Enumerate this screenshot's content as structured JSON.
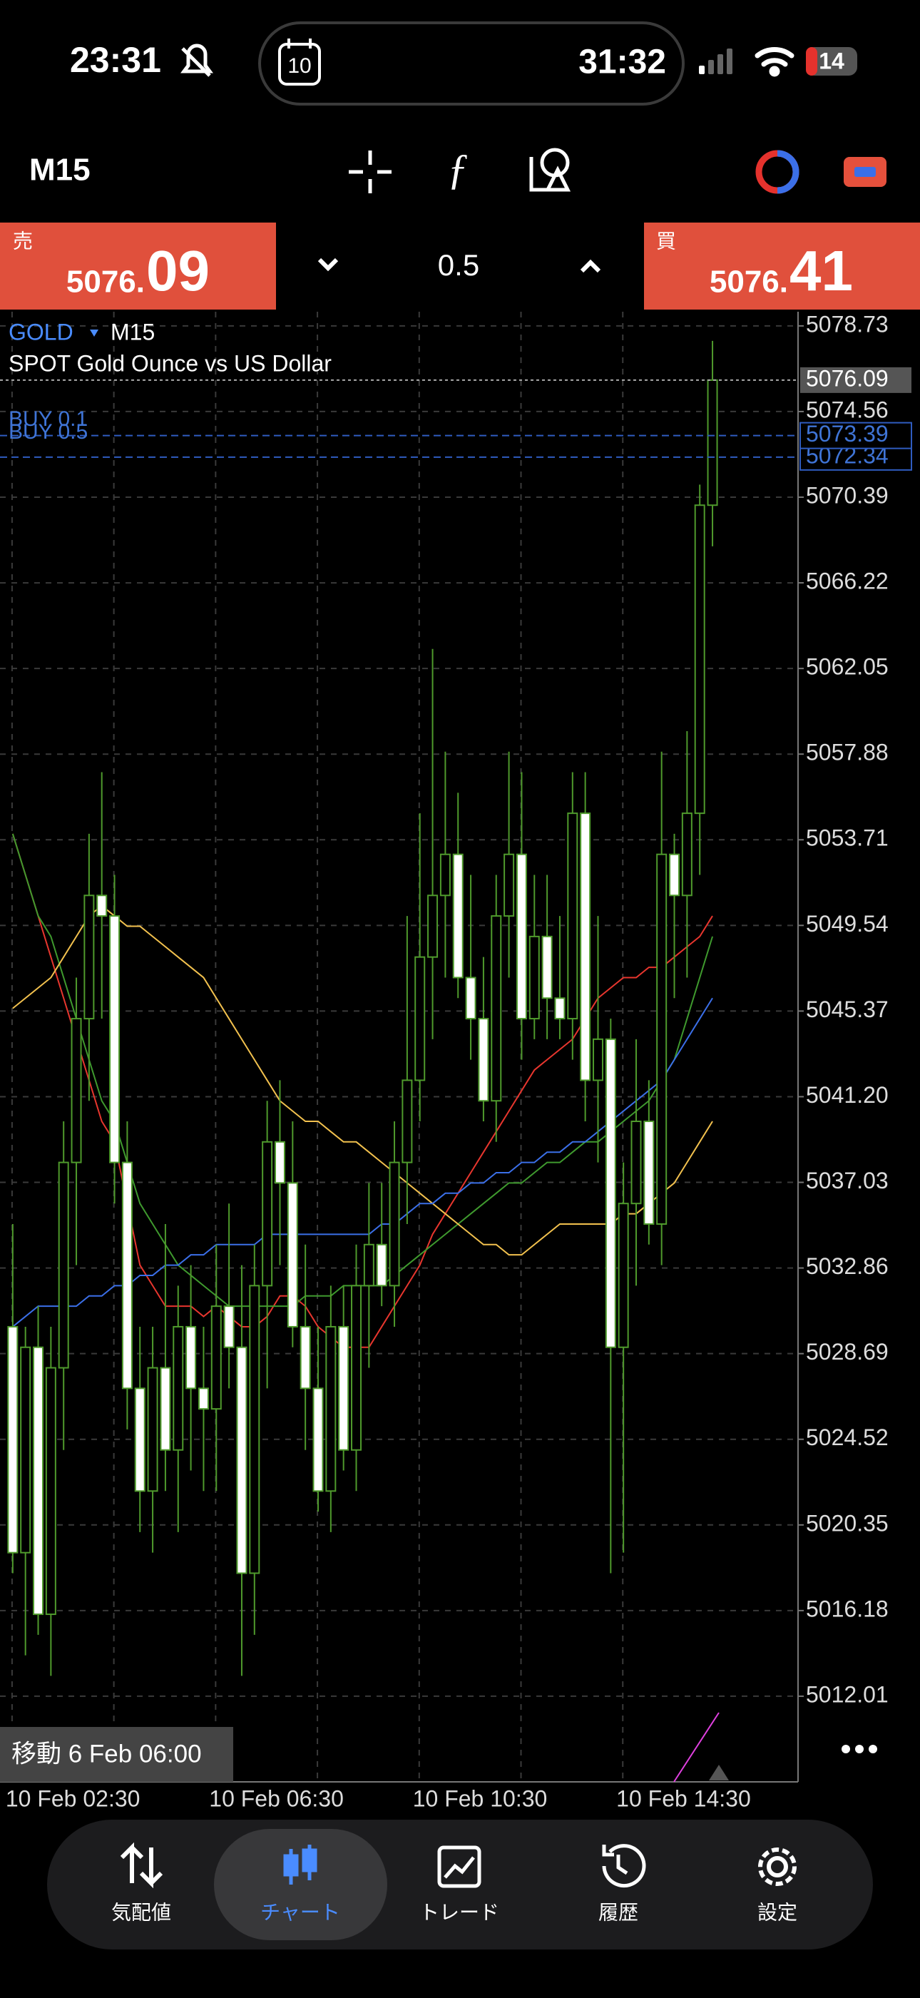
{
  "status_bar": {
    "time": "23:31",
    "calendar_day": "10",
    "timer": "31:32",
    "battery": "14"
  },
  "toolbar": {
    "timeframe": "M15"
  },
  "trade_panel": {
    "sell": {
      "label": "売",
      "price_small": "5076.",
      "price_big": "09"
    },
    "volume": "0.5",
    "buy": {
      "label": "買",
      "price_small": "5076.",
      "price_big": "41"
    }
  },
  "chart_data": {
    "type": "candlestick",
    "symbol": "GOLD",
    "timeframe": "M15",
    "subtitle": "SPOT Gold Ounce vs US Dollar",
    "categories": [
      "10 Feb 02:30",
      null,
      null,
      null,
      null,
      null,
      null,
      null,
      null,
      null,
      null,
      null,
      null,
      null,
      null,
      null,
      "10 Feb 06:30",
      null,
      null,
      null,
      null,
      null,
      null,
      null,
      null,
      null,
      null,
      null,
      null,
      null,
      null,
      null,
      "10 Feb 10:30",
      null,
      null,
      null,
      null,
      null,
      null,
      null,
      null,
      null,
      null,
      null,
      null,
      null,
      null,
      null,
      "10 Feb 14:30",
      null,
      null,
      null,
      null,
      null,
      null,
      null
    ],
    "open": [
      5030,
      5019,
      5029,
      5016,
      5028,
      5038,
      5045,
      5051,
      5050,
      5038,
      5027,
      5022,
      5028,
      5024,
      5030,
      5027,
      5026,
      5031,
      5029,
      5018,
      5032,
      5039,
      5037,
      5030,
      5027,
      5022,
      5030,
      5024,
      5032,
      5034,
      5032,
      5038,
      5042,
      5048,
      5051,
      5053,
      5047,
      5045,
      5041,
      5050,
      5053,
      5045,
      5049,
      5046,
      5045,
      5055,
      5042,
      5044,
      5029,
      5036,
      5040,
      5035,
      5053,
      5051,
      5055,
      5070
    ],
    "high": [
      5035,
      5030,
      5031,
      5030,
      5040,
      5047,
      5054,
      5057,
      5052,
      5040,
      5030,
      5030,
      5035,
      5032,
      5033,
      5030,
      5034,
      5036,
      5033,
      5034,
      5041,
      5042,
      5040,
      5034,
      5030,
      5032,
      5032,
      5034,
      5037,
      5037,
      5040,
      5050,
      5055,
      5063,
      5058,
      5056,
      5052,
      5048,
      5052,
      5058,
      5057,
      5052,
      5052,
      5050,
      5057,
      5057,
      5050,
      5045,
      5038,
      5044,
      5042,
      5058,
      5054,
      5059,
      5071,
      5078
    ],
    "low": [
      5018,
      5014,
      5015,
      5013,
      5024,
      5033,
      5041,
      5045,
      5036,
      5025,
      5020,
      5019,
      5022,
      5020,
      5023,
      5022,
      5022,
      5027,
      5013,
      5015,
      5027,
      5033,
      5029,
      5024,
      5021,
      5020,
      5023,
      5022,
      5028,
      5031,
      5030,
      5035,
      5040,
      5044,
      5047,
      5046,
      5043,
      5040,
      5039,
      5047,
      5043,
      5044,
      5044,
      5044,
      5043,
      5040,
      5038,
      5018,
      5019,
      5032,
      5034,
      5033,
      5046,
      5047,
      5052,
      5068
    ],
    "close": [
      5019,
      5029,
      5016,
      5028,
      5038,
      5045,
      5051,
      5050,
      5038,
      5027,
      5022,
      5028,
      5024,
      5030,
      5027,
      5026,
      5031,
      5029,
      5018,
      5032,
      5039,
      5037,
      5030,
      5027,
      5022,
      5030,
      5024,
      5032,
      5034,
      5032,
      5038,
      5042,
      5048,
      5051,
      5053,
      5047,
      5045,
      5041,
      5050,
      5053,
      5045,
      5049,
      5046,
      5045,
      5055,
      5042,
      5044,
      5029,
      5036,
      5040,
      5035,
      5053,
      5051,
      5055,
      5070,
      5076.09
    ],
    "series": [
      {
        "color": "#e8362e",
        "values": [
          5054,
          5052,
          5050,
          5048,
          5046,
          5044,
          5042,
          5040,
          5039,
          5036,
          5033,
          5032,
          5031,
          5031,
          5031,
          5030.5,
          5031,
          5030.5,
          5030,
          5030,
          5030.5,
          5031.5,
          5031.5,
          5031,
          5030,
          5029.5,
          5029,
          5029,
          5029,
          5030,
          5031,
          5032,
          5033,
          5034.5,
          5035.5,
          5036.5,
          5037.5,
          5038.5,
          5039.5,
          5040.5,
          5041.5,
          5042.5,
          5043,
          5043.5,
          5044,
          5045,
          5046,
          5046.5,
          5047,
          5047,
          5047.5,
          5047.5,
          5048,
          5048.5,
          5049,
          5050
        ]
      },
      {
        "color": "#3f9a2e",
        "values": [
          5054,
          5052,
          5050,
          5049,
          5047,
          5045,
          5043,
          5041,
          5040,
          5038,
          5036,
          5035,
          5034,
          5033,
          5032.5,
          5032,
          5031.5,
          5031,
          5031,
          5031,
          5031,
          5031,
          5031,
          5031.5,
          5031.5,
          5031.5,
          5032,
          5032,
          5032,
          5032,
          5032.5,
          5033,
          5033.5,
          5034,
          5034.5,
          5035,
          5035.5,
          5036,
          5036.5,
          5037,
          5037,
          5037.5,
          5038,
          5038,
          5038.5,
          5039,
          5039,
          5039.5,
          5040,
          5040.5,
          5041,
          5042,
          5043,
          5045,
          5047,
          5049
        ]
      },
      {
        "color": "#f2c14e",
        "values": [
          5045.5,
          5046,
          5046.5,
          5047,
          5048,
          5049,
          5050,
          5050.5,
          5050,
          5049.5,
          5049.5,
          5049,
          5048.5,
          5048,
          5047.5,
          5047,
          5046,
          5045,
          5044,
          5043,
          5042,
          5041,
          5040.5,
          5040,
          5040,
          5039.5,
          5039,
          5039,
          5038.5,
          5038,
          5037.5,
          5037,
          5036.5,
          5036,
          5035.5,
          5035,
          5034.5,
          5034,
          5034,
          5033.5,
          5033.5,
          5034,
          5034.5,
          5035,
          5035,
          5035,
          5035,
          5035,
          5035.5,
          5035.5,
          5036,
          5036.5,
          5037,
          5038,
          5039,
          5040
        ]
      },
      {
        "color": "#3b6fe8",
        "values": [
          5030,
          5030.5,
          5031,
          5031,
          5031,
          5031,
          5031.5,
          5031.5,
          5032,
          5032,
          5032.5,
          5032.5,
          5033,
          5033,
          5033.5,
          5033.5,
          5034,
          5034,
          5034,
          5034,
          5034.5,
          5034.5,
          5034.5,
          5034.5,
          5034.5,
          5034.5,
          5034.5,
          5034.5,
          5034.5,
          5035,
          5035,
          5035.5,
          5036,
          5036,
          5036.5,
          5036.5,
          5037,
          5037,
          5037.5,
          5037.5,
          5038,
          5038,
          5038.5,
          5038.5,
          5039,
          5039,
          5039.5,
          5040,
          5040.5,
          5041,
          5041.5,
          5042,
          5043,
          5044,
          5045,
          5046
        ]
      }
    ],
    "ylim": [
      5007.84,
      5079.42
    ],
    "yticks": [
      5078.73,
      5074.56,
      5070.39,
      5066.22,
      5062.05,
      5057.88,
      5053.71,
      5049.54,
      5045.37,
      {
        "value": 5041.2,
        "label": "5041.20"
      },
      5037.03,
      5032.86,
      5028.69,
      5024.52,
      5020.35,
      5016.18,
      5012.01
    ],
    "grid": true,
    "bid": 5076.09,
    "orders": [
      {
        "label": "BUY 0.1",
        "value": 5073.39
      },
      {
        "label": "BUY 0.5",
        "value": 5072.34
      }
    ],
    "scroll_label": "移動 6 Feb 06:00"
  },
  "nav": {
    "items": [
      "気配値",
      "チャート",
      "トレード",
      "履歴",
      "設定"
    ],
    "active": 1
  }
}
